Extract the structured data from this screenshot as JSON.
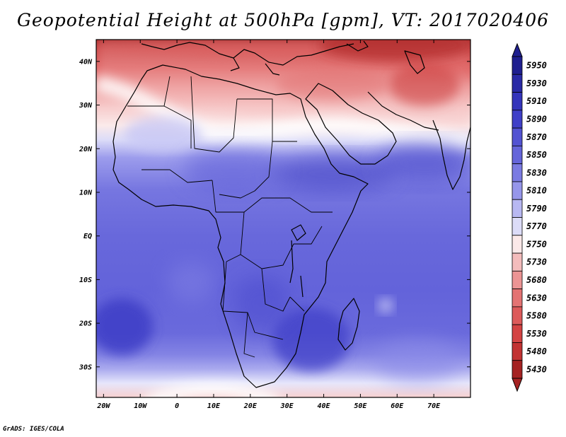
{
  "title": "Geopotential Height at 500hPa [gpm], VT: 2017020406",
  "credit": "GrADS: IGES/COLA",
  "map": {
    "lat_labels": [
      "40N",
      "30N",
      "20N",
      "10N",
      "EQ",
      "10S",
      "20S",
      "30S"
    ],
    "lon_labels": [
      "20W",
      "10W",
      "0",
      "10E",
      "20E",
      "30E",
      "40E",
      "50E",
      "60E",
      "70E"
    ],
    "lon_range": [
      -22,
      80
    ],
    "lat_range": [
      -37,
      45
    ]
  },
  "colorbar": {
    "levels": [
      "5950",
      "5930",
      "5910",
      "5890",
      "5870",
      "5850",
      "5830",
      "5810",
      "5790",
      "5770",
      "5750",
      "5730",
      "5680",
      "5630",
      "5580",
      "5530",
      "5480",
      "5430"
    ],
    "colors": [
      "#1f1f8f",
      "#2a2aa6",
      "#3535bb",
      "#4040c8",
      "#5353d2",
      "#6565da",
      "#7b7be2",
      "#9696ea",
      "#b8b8f2",
      "#dcdcf8",
      "#fbe9e9",
      "#f4bcbc",
      "#ec9494",
      "#e47373",
      "#dd5a5a",
      "#d44343",
      "#c23232",
      "#a52222"
    ]
  }
}
